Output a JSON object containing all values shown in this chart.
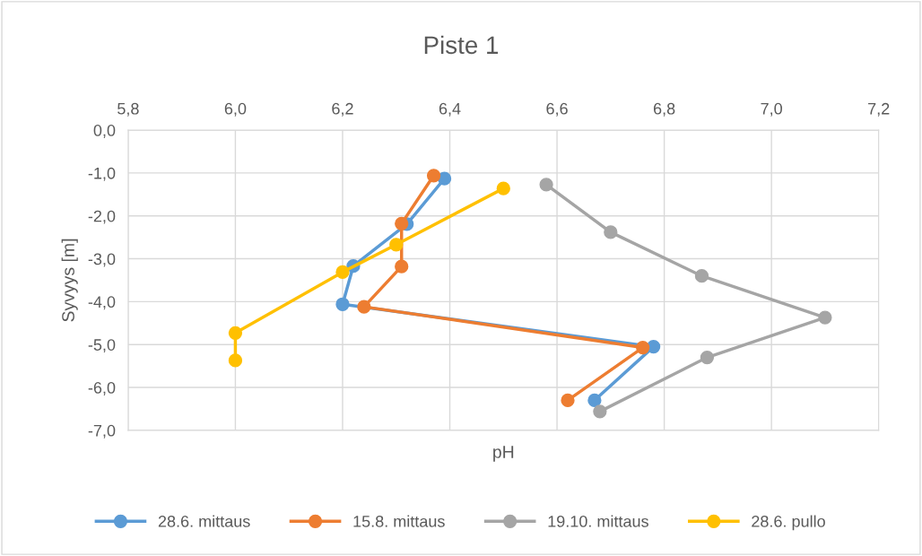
{
  "chart_data": {
    "type": "line",
    "title": "Piste 1",
    "xlabel": "pH",
    "ylabel": "Syvyys [m]",
    "xlim": [
      5.8,
      7.2
    ],
    "xticks": [
      {
        "value": 5.8,
        "label": "5,8"
      },
      {
        "value": 6.0,
        "label": "6,0"
      },
      {
        "value": 6.2,
        "label": "6,2"
      },
      {
        "value": 6.4,
        "label": "6,4"
      },
      {
        "value": 6.6,
        "label": "6,6"
      },
      {
        "value": 6.8,
        "label": "6,8"
      },
      {
        "value": 7.0,
        "label": "7,0"
      },
      {
        "value": 7.2,
        "label": "7,2"
      }
    ],
    "ylim": [
      -7,
      0
    ],
    "yticks": [
      {
        "value": 0,
        "label": "0,0"
      },
      {
        "value": -1,
        "label": "-1,0"
      },
      {
        "value": -2,
        "label": "-2,0"
      },
      {
        "value": -3,
        "label": "-3,0"
      },
      {
        "value": -4,
        "label": "-4,0"
      },
      {
        "value": -5,
        "label": "-5,0"
      },
      {
        "value": -6,
        "label": "-6,0"
      },
      {
        "value": -7,
        "label": "-7,0"
      }
    ],
    "grid": true,
    "legend": "bottom",
    "marker": "circle",
    "line_style": "solid",
    "series": [
      {
        "name": "28.6. mittaus",
        "color": "#5b9bd5",
        "x": [
          6.39,
          6.32,
          6.22,
          6.2,
          6.78,
          6.67
        ],
        "values": [
          -1.13,
          -2.19,
          -3.17,
          -4.06,
          -5.05,
          -6.3
        ]
      },
      {
        "name": "15.8. mittaus",
        "color": "#ed7d31",
        "x": [
          6.37,
          6.31,
          6.31,
          6.24,
          6.76,
          6.62
        ],
        "values": [
          -1.06,
          -2.18,
          -3.18,
          -4.12,
          -5.07,
          -6.3
        ]
      },
      {
        "name": "19.10. mittaus",
        "color": "#a5a5a5",
        "x": [
          6.58,
          6.7,
          6.87,
          7.1,
          6.88,
          6.68
        ],
        "values": [
          -1.27,
          -2.38,
          -3.4,
          -4.37,
          -5.3,
          -6.56
        ]
      },
      {
        "name": "28.6. pullo",
        "color": "#ffc000",
        "x": [
          6.5,
          6.3,
          6.2,
          6.0,
          6.0
        ],
        "values": [
          -1.36,
          -2.67,
          -3.31,
          -4.73,
          -5.37
        ]
      }
    ]
  }
}
